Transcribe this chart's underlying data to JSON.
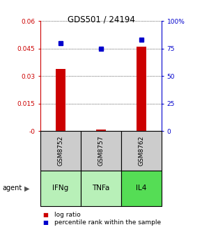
{
  "title": "GDS501 / 24194",
  "samples": [
    "GSM8752",
    "GSM8757",
    "GSM8762"
  ],
  "agents": [
    "IFNg",
    "TNFa",
    "IL4"
  ],
  "log_ratios": [
    0.034,
    0.001,
    0.046
  ],
  "percentile_ranks": [
    80.0,
    75.0,
    83.0
  ],
  "left_ylim": [
    0,
    0.06
  ],
  "right_ylim": [
    0,
    100
  ],
  "left_yticks": [
    0,
    0.015,
    0.03,
    0.045,
    0.06
  ],
  "left_yticklabels": [
    "-0",
    "0.015",
    "0.03",
    "0.045",
    "0.06"
  ],
  "right_yticks": [
    0,
    25,
    50,
    75,
    100
  ],
  "right_yticklabels": [
    "0",
    "25",
    "50",
    "75",
    "100%"
  ],
  "bar_color": "#cc0000",
  "dot_color": "#0000cc",
  "agent_colors": [
    "#b8f0b8",
    "#b8f0b8",
    "#55dd55"
  ],
  "sample_bg_color": "#cccccc",
  "grid_color": "#808080",
  "title_color": "#000000",
  "left_axis_color": "#cc0000",
  "right_axis_color": "#0000cc",
  "bar_width": 0.25
}
